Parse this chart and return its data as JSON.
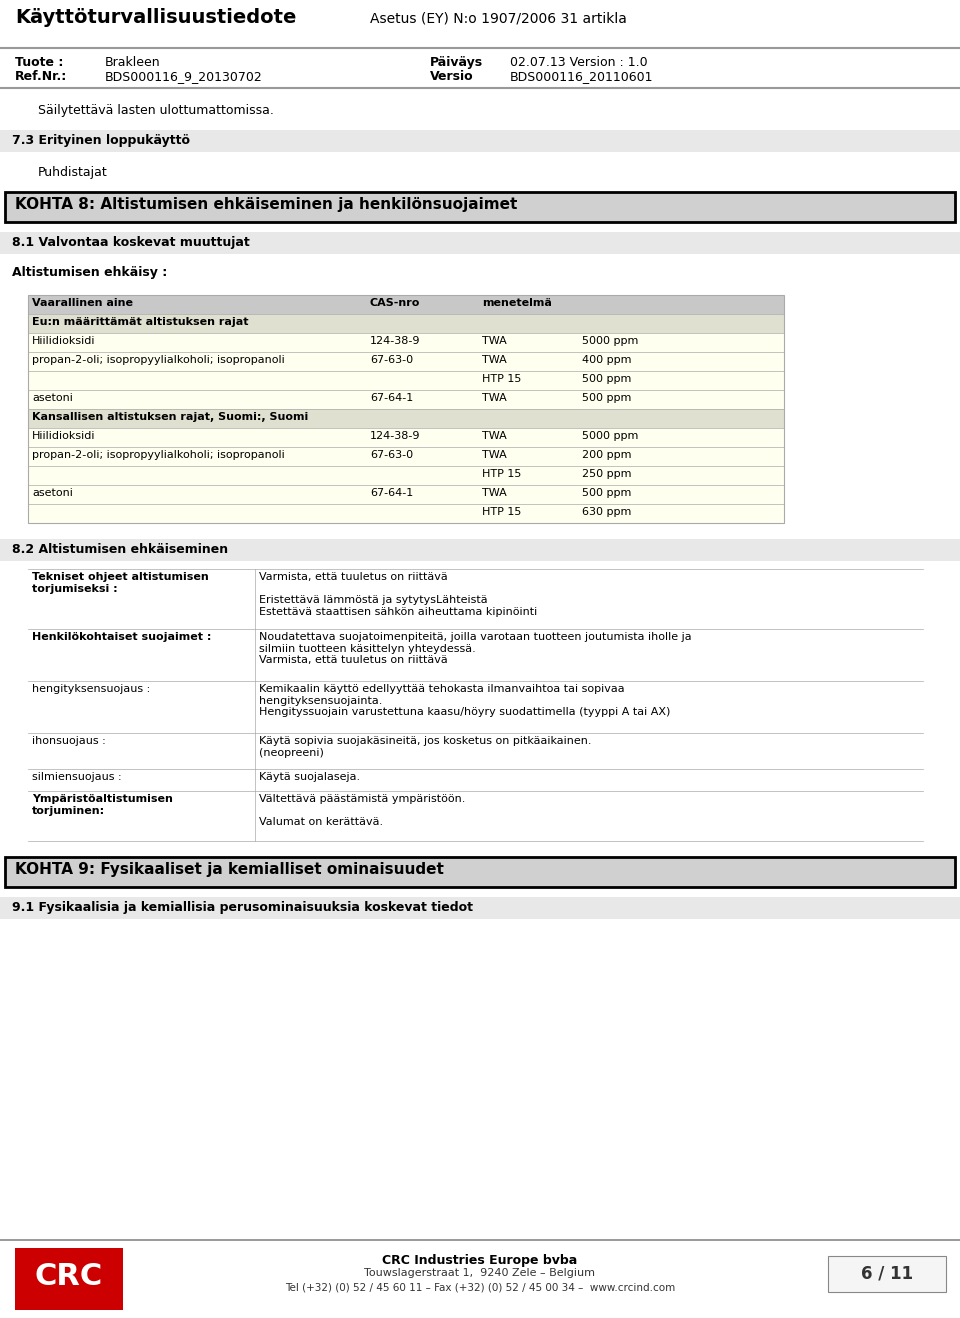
{
  "page_bg": "#ffffff",
  "header_title": "Käyttöturvallisuustiedote",
  "header_regulation": "Asetus (EY) N:o 1907/2006 31 artikla",
  "tuote_label": "Tuote :",
  "tuote_value": "Brakleen",
  "refnr_label": "Ref.Nr.:",
  "refnr_value": "BDS000116_9_20130702",
  "paivays_label": "Päiväys",
  "paivays_value": "02.07.13 Version : 1.0",
  "versio_label": "Versio",
  "versio_value": "BDS000116_20110601",
  "storage_text": "Säilytettävä lasten ulottumattomissa.",
  "section73_title": "7.3 Erityinen loppukäyttö",
  "section73_bg": "#e8e8e8",
  "puhdistajat": "Puhdistajat",
  "section8_title": "KOHTA 8: Altistumisen ehkäiseminen ja henkilönsuojaimet",
  "section8_bg": "#d0d0d0",
  "section81_title": "8.1 Valvontaa koskevat muuttujat",
  "section81_bg": "#e8e8e8",
  "altistuminen_label": "Altistumisen ehkäisy :",
  "table_header_bg": "#c8c8c8",
  "table_row_bg": "#fffff0",
  "table_section_bg": "#e0e0d0",
  "col_headers": [
    "Vaarallinen aine",
    "CAS-nro",
    "menetelmä",
    ""
  ],
  "eu_section_label": "Eu:n määrittämät altistuksen rajat",
  "eu_rows": [
    [
      "Hiilidioksidi",
      "124-38-9",
      "TWA",
      "5000 ppm"
    ],
    [
      "propan-2-oli; isopropyylialkoholi; isopropanoli",
      "67-63-0",
      "TWA",
      "400 ppm"
    ],
    [
      "",
      "",
      "HTP 15",
      "500 ppm"
    ],
    [
      "asetoni",
      "67-64-1",
      "TWA",
      "500 ppm"
    ]
  ],
  "fi_section_label": "Kansallisen altistuksen rajat, Suomi:, Suomi",
  "fi_rows": [
    [
      "Hiilidioksidi",
      "124-38-9",
      "TWA",
      "5000 ppm"
    ],
    [
      "propan-2-oli; isopropyylialkoholi; isopropanoli",
      "67-63-0",
      "TWA",
      "200 ppm"
    ],
    [
      "",
      "",
      "HTP 15",
      "250 ppm"
    ],
    [
      "asetoni",
      "67-64-1",
      "TWA",
      "500 ppm"
    ],
    [
      "",
      "",
      "HTP 15",
      "630 ppm"
    ]
  ],
  "section82_title": "8.2 Altistumisen ehkäiseminen",
  "section82_bg": "#e8e8e8",
  "section9_title": "KOHTA 9: Fysikaaliset ja kemialliset ominaisuudet",
  "section9_bg": "#d0d0d0",
  "section91_title": "9.1 Fysikaalisia ja kemiallisia perusominaisuuksia koskevat tiedot",
  "section91_bg": "#e8e8e8",
  "footer_company": "CRC Industries Europe bvba",
  "footer_address": "Touwslagerstraat 1,  9240 Zele – Belgium",
  "footer_tel": "Tel (+32) (0) 52 / 45 60 11 – Fax (+32) (0) 52 / 45 00 34 –  www.crcind.com",
  "footer_page": "6 / 11",
  "line_color": "#aaaaaa",
  "border_color": "#555555"
}
